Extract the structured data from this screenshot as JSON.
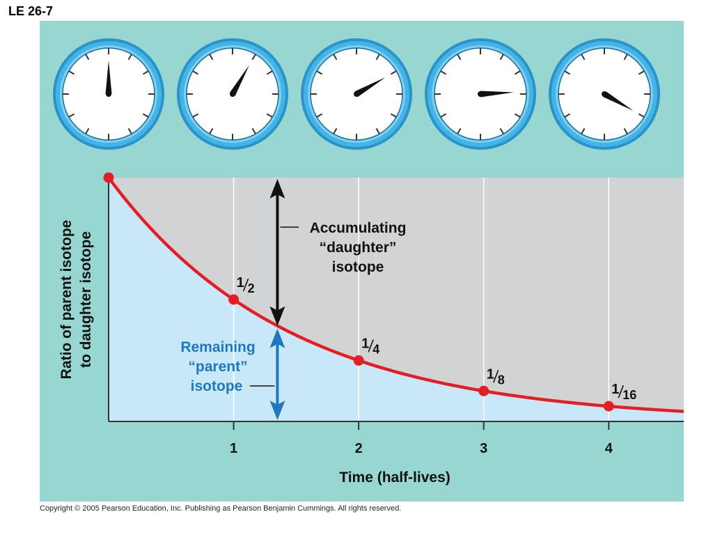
{
  "figure_label": "LE 26-7",
  "copyright": "Copyright © 2005 Pearson Education, Inc. Publishing as Pearson Benjamin Cummings. All rights reserved.",
  "colors": {
    "panel": "#98d6d1",
    "gray_region": "#d2d3d4",
    "blue_region": "#c8e8f7",
    "curve": "#e31e24",
    "blue_arrow": "#1d78c1",
    "clock_ring": "#44b3e6"
  },
  "clocks": [
    {
      "hand_angle_deg": 0
    },
    {
      "hand_angle_deg": 30
    },
    {
      "hand_angle_deg": 60
    },
    {
      "hand_angle_deg": 87
    },
    {
      "hand_angle_deg": 120
    }
  ],
  "chart_data": {
    "type": "line",
    "xlabel": "Time (half-lives)",
    "ylabel": "Ratio of parent isotope to daughter isotope",
    "xlim": [
      0,
      4.6
    ],
    "ylim": [
      0,
      1
    ],
    "x_ticks": [
      "1",
      "2",
      "3",
      "4"
    ],
    "x": [
      0,
      1,
      2,
      3,
      4
    ],
    "values": [
      1,
      0.5,
      0.25,
      0.125,
      0.0625
    ],
    "point_labels": [
      {
        "num": "",
        "den": ""
      },
      {
        "num": "1",
        "den": "2"
      },
      {
        "num": "1",
        "den": "4"
      },
      {
        "num": "1",
        "den": "8"
      },
      {
        "num": "1",
        "den": "16"
      }
    ],
    "annotations": {
      "daughter": [
        "Accumulating",
        "“daughter”",
        "isotope"
      ],
      "parent": [
        "Remaining",
        "“parent”",
        "isotope"
      ]
    }
  }
}
